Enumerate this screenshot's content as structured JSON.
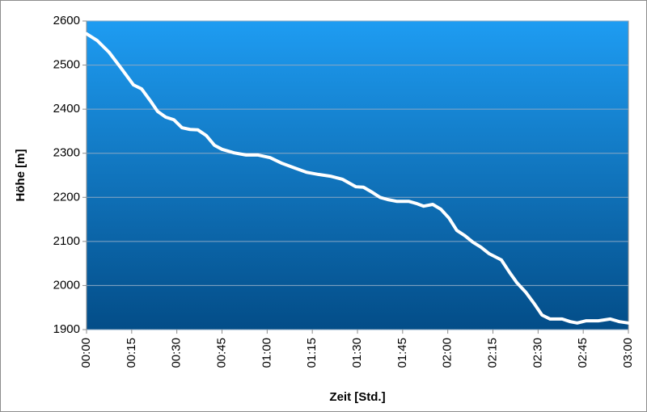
{
  "chart_data": {
    "type": "line",
    "x_label": "Zeit [Std.]",
    "y_label": "Höhe [m]",
    "x": [
      0,
      3.5,
      7.5,
      11.6,
      15.6,
      18.3,
      21.2,
      23.6,
      26.3,
      29,
      31.7,
      34.4,
      37,
      39.8,
      42.5,
      45,
      49,
      53,
      57,
      61,
      65,
      69,
      73,
      77,
      81,
      85,
      89.5,
      92,
      95,
      97.5,
      100,
      103,
      107,
      109.6,
      112,
      115,
      117.7,
      120.4,
      123,
      125.7,
      128.4,
      131,
      133.8,
      137.8,
      140.5,
      143,
      146,
      148.6,
      151.3,
      154,
      158,
      160.7,
      163,
      166,
      170,
      174,
      177,
      180
    ],
    "series": [
      {
        "color": "#ffffff",
        "values": [
          2571,
          2556,
          2529,
          2492,
          2455,
          2446,
          2419,
          2395,
          2382,
          2376,
          2358,
          2354,
          2353,
          2340,
          2318,
          2309,
          2301,
          2296,
          2296,
          2290,
          2277,
          2267,
          2257,
          2252,
          2248,
          2241,
          2224,
          2223,
          2211,
          2200,
          2195,
          2191,
          2191,
          2186,
          2180,
          2184,
          2173,
          2153,
          2125,
          2113,
          2098,
          2087,
          2072,
          2058,
          2030,
          2006,
          1984,
          1960,
          1933,
          1924,
          1924,
          1918,
          1915,
          1920,
          1920,
          1924,
          1918,
          1915
        ]
      }
    ],
    "xlim": [
      0,
      180
    ],
    "xticks": [
      {
        "value": 0,
        "label": "00:00"
      },
      {
        "value": 15,
        "label": "00:15"
      },
      {
        "value": 30,
        "label": "00:30"
      },
      {
        "value": 45,
        "label": "00:45"
      },
      {
        "value": 60,
        "label": "01:00"
      },
      {
        "value": 75,
        "label": "01:15"
      },
      {
        "value": 90,
        "label": "01:30"
      },
      {
        "value": 105,
        "label": "01:45"
      },
      {
        "value": 120,
        "label": "02:00"
      },
      {
        "value": 135,
        "label": "02:15"
      },
      {
        "value": 150,
        "label": "02:30"
      },
      {
        "value": 165,
        "label": "02:45"
      },
      {
        "value": 180,
        "label": "03:00"
      }
    ],
    "ylim": [
      1900,
      2600
    ],
    "yticks": [
      1900,
      2000,
      2100,
      2200,
      2300,
      2400,
      2500,
      2600
    ],
    "grid": true
  }
}
